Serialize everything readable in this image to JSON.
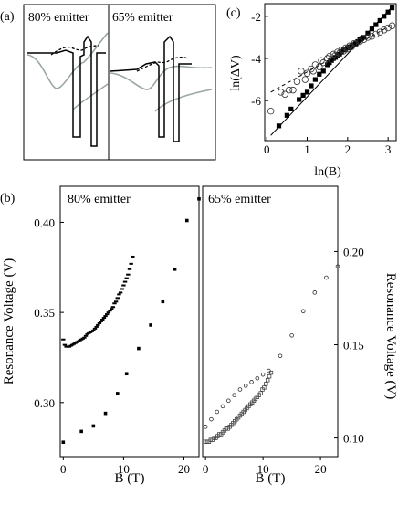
{
  "panel_labels": {
    "a": "(a)",
    "b": "(b)",
    "c": "(c)"
  },
  "panel_a": {
    "left_label": "80% emitter",
    "right_label": "65% emitter"
  },
  "chart_data": [
    {
      "id": "b_left",
      "type": "scatter",
      "panel_text": "80% emitter",
      "xlabel": "B (T)",
      "ylabel": "Resonance Voltage (V)",
      "xlim": [
        -0.5,
        22.5
      ],
      "ylim": [
        0.27,
        0.42
      ],
      "xticks": [
        0,
        10,
        20
      ],
      "yticks": [
        0.3,
        0.35,
        0.4
      ],
      "series": [
        {
          "marker": "dash",
          "x": [
            0,
            0.25,
            0.5,
            0.75,
            1,
            1.25,
            1.5,
            1.75,
            2,
            2.25,
            2.5,
            2.75,
            3,
            3.25,
            3.5,
            3.75,
            4,
            4.25,
            4.5,
            4.75,
            5,
            5.25,
            5.5,
            5.75,
            6,
            6.25,
            6.5,
            6.75,
            7,
            7.25,
            7.5,
            7.75,
            8,
            8.25,
            8.5,
            8.75,
            9,
            9.25,
            9.5,
            9.75,
            10,
            10.25,
            10.5,
            10.75,
            11,
            11.25,
            11.5
          ],
          "y": [
            0.335,
            0.332,
            0.331,
            0.331,
            0.331,
            0.3315,
            0.332,
            0.3325,
            0.333,
            0.3335,
            0.334,
            0.3345,
            0.335,
            0.3355,
            0.336,
            0.337,
            0.338,
            0.3385,
            0.339,
            0.3395,
            0.34,
            0.341,
            0.342,
            0.343,
            0.344,
            0.345,
            0.346,
            0.347,
            0.348,
            0.349,
            0.35,
            0.351,
            0.352,
            0.353,
            0.355,
            0.356,
            0.358,
            0.36,
            0.361,
            0.363,
            0.365,
            0.367,
            0.369,
            0.371,
            0.374,
            0.377,
            0.381
          ]
        },
        {
          "marker": "square",
          "x": [
            0,
            3,
            5,
            7,
            9,
            10.5,
            12.5,
            14.5,
            16.5,
            18.5,
            20.5,
            22.5
          ],
          "y": [
            0.278,
            0.284,
            0.287,
            0.294,
            0.305,
            0.316,
            0.33,
            0.343,
            0.356,
            0.374,
            0.401,
            0.413
          ]
        }
      ]
    },
    {
      "id": "b_right",
      "type": "scatter",
      "panel_text": "65% emitter",
      "xlabel": "B (T)",
      "ylabel": "Resonance Voltage (V)",
      "xlim": [
        -0.5,
        23
      ],
      "ylim": [
        0.09,
        0.235
      ],
      "xticks": [
        0,
        10,
        20
      ],
      "yticks": [
        0.1,
        0.15,
        0.2
      ],
      "series": [
        {
          "marker": "open-square",
          "x": [
            0,
            0.3,
            0.6,
            0.9,
            1.2,
            1.5,
            1.8,
            2.1,
            2.4,
            2.7,
            3,
            3.3,
            3.6,
            3.9,
            4.2,
            4.5,
            4.8,
            5.1,
            5.4,
            5.7,
            6,
            6.3,
            6.6,
            6.9,
            7.2,
            7.5,
            7.8,
            8.1,
            8.4,
            8.7,
            9,
            9.3,
            9.6,
            9.9,
            10.2,
            10.5,
            10.8,
            11.1,
            11.4
          ],
          "y": [
            0.098,
            0.098,
            0.098,
            0.099,
            0.099,
            0.1,
            0.1,
            0.101,
            0.102,
            0.102,
            0.103,
            0.104,
            0.105,
            0.105,
            0.106,
            0.107,
            0.108,
            0.109,
            0.11,
            0.111,
            0.112,
            0.113,
            0.114,
            0.115,
            0.116,
            0.117,
            0.118,
            0.119,
            0.12,
            0.121,
            0.122,
            0.123,
            0.124,
            0.126,
            0.127,
            0.129,
            0.131,
            0.133,
            0.135
          ]
        },
        {
          "marker": "open-circle",
          "x": [
            0,
            1,
            2,
            3,
            4,
            5,
            6,
            7,
            8,
            9,
            10,
            11,
            13,
            15,
            17,
            19,
            21,
            23
          ],
          "y": [
            0.106,
            0.11,
            0.114,
            0.117,
            0.12,
            0.123,
            0.126,
            0.128,
            0.13,
            0.132,
            0.134,
            0.136,
            0.144,
            0.155,
            0.168,
            0.178,
            0.186,
            0.192
          ]
        }
      ]
    },
    {
      "id": "c",
      "type": "scatter",
      "xlabel": "ln(B)",
      "ylabel": "ln(ΔV)",
      "xlim": [
        -0.05,
        3.2
      ],
      "ylim": [
        -7.9,
        -1.4
      ],
      "xticks": [
        0,
        1,
        2,
        3
      ],
      "yticks": [
        -2,
        -4,
        -6
      ],
      "series": [
        {
          "marker": "filled-square",
          "x": [
            0.3,
            0.5,
            0.6,
            0.8,
            0.9,
            1.0,
            1.1,
            1.2,
            1.3,
            1.4,
            1.5,
            1.55,
            1.6,
            1.65,
            1.7,
            1.75,
            1.8,
            1.85,
            1.9,
            1.95,
            2.0,
            2.05,
            2.1,
            2.15,
            2.2,
            2.25,
            2.3,
            2.35,
            2.4,
            2.5,
            2.6,
            2.7,
            2.8,
            2.9,
            3.0,
            3.1
          ],
          "y": [
            -7.2,
            -6.7,
            -6.4,
            -5.95,
            -5.75,
            -5.6,
            -5.3,
            -5.0,
            -4.75,
            -4.6,
            -4.3,
            -4.2,
            -4.1,
            -4.0,
            -3.95,
            -3.85,
            -3.8,
            -3.7,
            -3.6,
            -3.55,
            -3.5,
            -3.45,
            -3.4,
            -3.35,
            -3.3,
            -3.2,
            -3.1,
            -3.05,
            -3.0,
            -2.8,
            -2.6,
            -2.4,
            -2.2,
            -2.0,
            -1.8,
            -1.6
          ]
        },
        {
          "marker": "open-circle",
          "x": [
            0.1,
            0.35,
            0.45,
            0.55,
            0.65,
            0.75,
            0.85,
            0.95,
            1.0,
            1.1,
            1.15,
            1.2,
            1.3,
            1.35,
            1.4,
            1.5,
            1.55,
            1.6,
            1.65,
            1.7,
            1.75,
            1.8,
            1.85,
            1.9,
            1.95,
            2.0,
            2.05,
            2.1,
            2.15,
            2.2,
            2.3,
            2.4,
            2.5,
            2.6,
            2.7,
            2.8,
            2.9,
            3.0,
            3.1
          ],
          "y": [
            -6.5,
            -5.6,
            -5.7,
            -5.5,
            -5.5,
            -5.1,
            -4.6,
            -5.0,
            -4.7,
            -4.5,
            -4.6,
            -4.3,
            -4.4,
            -4.1,
            -4.2,
            -4.0,
            -3.9,
            -4.05,
            -3.8,
            -3.85,
            -3.7,
            -3.75,
            -3.6,
            -3.65,
            -3.5,
            -3.55,
            -3.4,
            -3.45,
            -3.3,
            -3.3,
            -3.2,
            -3.1,
            -3.0,
            -2.95,
            -2.85,
            -2.75,
            -2.65,
            -2.55,
            -2.45
          ]
        }
      ],
      "fit_lines": [
        {
          "style": "solid",
          "x": [
            0.1,
            3.1
          ],
          "y": [
            -7.65,
            -1.55
          ]
        },
        {
          "style": "dashed",
          "x": [
            0.1,
            3.1
          ],
          "y": [
            -5.6,
            -2.4
          ]
        }
      ]
    }
  ]
}
